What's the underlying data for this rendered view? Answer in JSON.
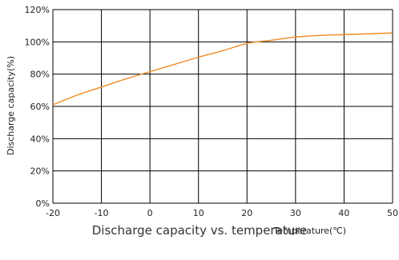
{
  "chart_data": {
    "type": "line",
    "xlabel": "Temperature(℃)",
    "ylabel": "Discharge capacity(%)",
    "xlim": [
      -20,
      50
    ],
    "ylim": [
      0,
      120
    ],
    "xticks": [
      -20,
      -10,
      0,
      10,
      20,
      30,
      40,
      50
    ],
    "yticks": [
      0,
      20,
      40,
      60,
      80,
      100,
      120
    ],
    "xtick_labels": [
      "-20",
      "-10",
      "0",
      "10",
      "20",
      "30",
      "40",
      "50"
    ],
    "ytick_labels": [
      "0%",
      "20%",
      "40%",
      "60%",
      "80%",
      "100%",
      "120%"
    ],
    "grid": true,
    "series": [
      {
        "color": "#f08a24",
        "x": [
          -20,
          -15,
          -10,
          -5,
          0,
          5,
          10,
          15,
          20,
          25,
          30,
          35,
          40,
          45,
          50
        ],
        "y": [
          61,
          67,
          72,
          77,
          81.5,
          86,
          90.5,
          94.5,
          99,
          101,
          103,
          104,
          104.5,
          105,
          105.5
        ]
      }
    ]
  },
  "caption": "Discharge capacity vs. temperature"
}
